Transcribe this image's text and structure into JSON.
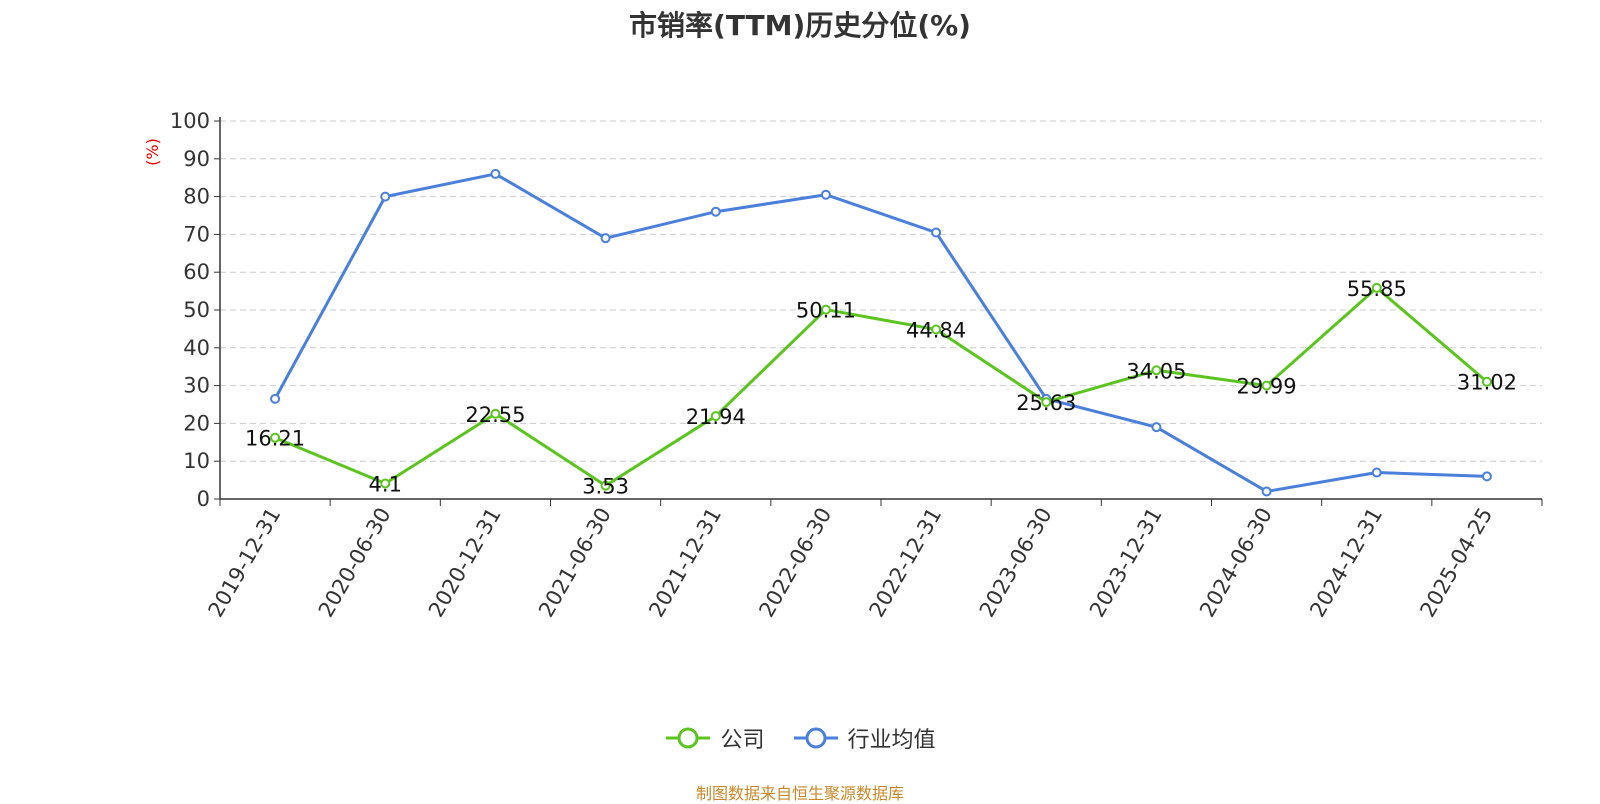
{
  "chart_data": {
    "type": "line",
    "title": "市销率(TTM)历史分位(%)",
    "ylabel": "(%)",
    "xlabel": "",
    "ylim": [
      0,
      100
    ],
    "yticks": [
      0,
      10,
      20,
      30,
      40,
      50,
      60,
      70,
      80,
      90,
      100
    ],
    "grid": true,
    "legend_position": "bottom",
    "categories": [
      "2019-12-31",
      "2020-06-30",
      "2020-12-31",
      "2021-06-30",
      "2021-12-31",
      "2022-06-30",
      "2022-12-31",
      "2023-06-30",
      "2023-12-31",
      "2024-06-30",
      "2024-12-31",
      "2025-04-25"
    ],
    "series": [
      {
        "name": "公司",
        "color": "#5cc41f",
        "values": [
          16.21,
          4.1,
          22.55,
          3.53,
          21.94,
          50.11,
          44.84,
          25.63,
          34.05,
          29.99,
          55.85,
          31.02
        ],
        "labels": [
          "16.21",
          "4.1",
          "22.55",
          "3.53",
          "21.94",
          "50.11",
          "44.84",
          "25.63",
          "34.05",
          "29.99",
          "55.85",
          "31.02"
        ]
      },
      {
        "name": "行业均值",
        "color": "#4a7fdb",
        "values": [
          26.5,
          80.0,
          86.0,
          69.0,
          76.0,
          80.5,
          70.5,
          26.5,
          19.0,
          2.0,
          7.0,
          6.0
        ]
      }
    ]
  },
  "source_text": "制图数据来自恒生聚源数据库"
}
